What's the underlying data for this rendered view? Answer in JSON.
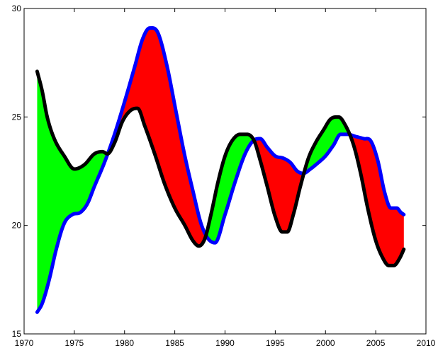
{
  "chart_data": {
    "type": "line",
    "title": "",
    "xlabel": "",
    "ylabel": "",
    "xlim": [
      1970,
      2010
    ],
    "ylim": [
      15,
      30
    ],
    "grid": false,
    "xticks": [
      "1970",
      "1975",
      "1980",
      "1985",
      "1990",
      "1995",
      "2000",
      "2005",
      "2010"
    ],
    "yticks": [
      "15",
      "20",
      "25",
      "30"
    ],
    "fill_colors": {
      "first_above": "#00ff00",
      "second_above": "#ff0000"
    },
    "series": [
      {
        "color": "#000000",
        "x": [
          1971.3,
          1971.8,
          1972.3,
          1973.0,
          1974.0,
          1975.0,
          1976.0,
          1977.0,
          1977.8,
          1978.3,
          1979.0,
          1979.8,
          1980.6,
          1981.3,
          1982.0,
          1983.0,
          1984.0,
          1985.0,
          1986.0,
          1986.8,
          1987.4,
          1988.0,
          1988.6,
          1989.3,
          1990.0,
          1990.7,
          1991.5,
          1992.2,
          1992.9,
          1993.5,
          1994.2,
          1995.0,
          1995.7,
          1996.2,
          1996.8,
          1997.5,
          1998.3,
          1999.0,
          1999.8,
          2000.5,
          2001.3,
          2002.0,
          2002.8,
          2003.5,
          2004.2,
          2005.0,
          2005.7,
          2006.3,
          2006.8,
          2007.4,
          2007.8
        ],
        "y": [
          27.1,
          26.2,
          25.0,
          24.0,
          23.2,
          22.6,
          22.8,
          23.3,
          23.4,
          23.3,
          23.8,
          24.8,
          25.3,
          25.4,
          24.6,
          23.3,
          21.9,
          20.8,
          20.0,
          19.3,
          19.05,
          19.4,
          20.5,
          22.0,
          23.2,
          23.9,
          24.2,
          24.2,
          23.9,
          23.0,
          21.8,
          20.4,
          19.7,
          19.7,
          20.5,
          21.8,
          23.1,
          23.8,
          24.4,
          24.9,
          25.0,
          24.6,
          23.7,
          22.4,
          20.8,
          19.3,
          18.5,
          18.15,
          18.15,
          18.5,
          18.9
        ]
      },
      {
        "color": "#0000ff",
        "x": [
          1971.3,
          1971.8,
          1972.5,
          1973.2,
          1974.0,
          1974.8,
          1975.6,
          1976.3,
          1977.0,
          1978.0,
          1979.0,
          1980.0,
          1981.0,
          1981.8,
          1982.5,
          1983.3,
          1984.2,
          1985.1,
          1986.0,
          1986.8,
          1987.6,
          1988.3,
          1989.0,
          1990.0,
          1991.0,
          1992.0,
          1992.8,
          1993.5,
          1994.2,
          1995.0,
          1995.8,
          1996.5,
          1997.2,
          1997.8,
          1998.5,
          1999.3,
          2000.0,
          2000.8,
          2001.5,
          2002.2,
          2003.0,
          2003.8,
          2004.5,
          2005.2,
          2005.9,
          2006.5,
          2007.1,
          2007.5,
          2007.8
        ],
        "y": [
          16.0,
          16.4,
          17.5,
          18.9,
          20.1,
          20.5,
          20.6,
          21.0,
          21.8,
          22.9,
          24.2,
          25.7,
          27.3,
          28.6,
          29.1,
          28.9,
          27.4,
          25.3,
          23.2,
          21.6,
          20.1,
          19.4,
          19.2,
          20.5,
          22.0,
          23.3,
          23.9,
          24.0,
          23.6,
          23.2,
          23.1,
          22.9,
          22.5,
          22.4,
          22.6,
          22.9,
          23.2,
          23.7,
          24.2,
          24.2,
          24.1,
          24.0,
          23.9,
          23.0,
          21.5,
          20.8,
          20.8,
          20.6,
          20.5
        ]
      }
    ]
  }
}
